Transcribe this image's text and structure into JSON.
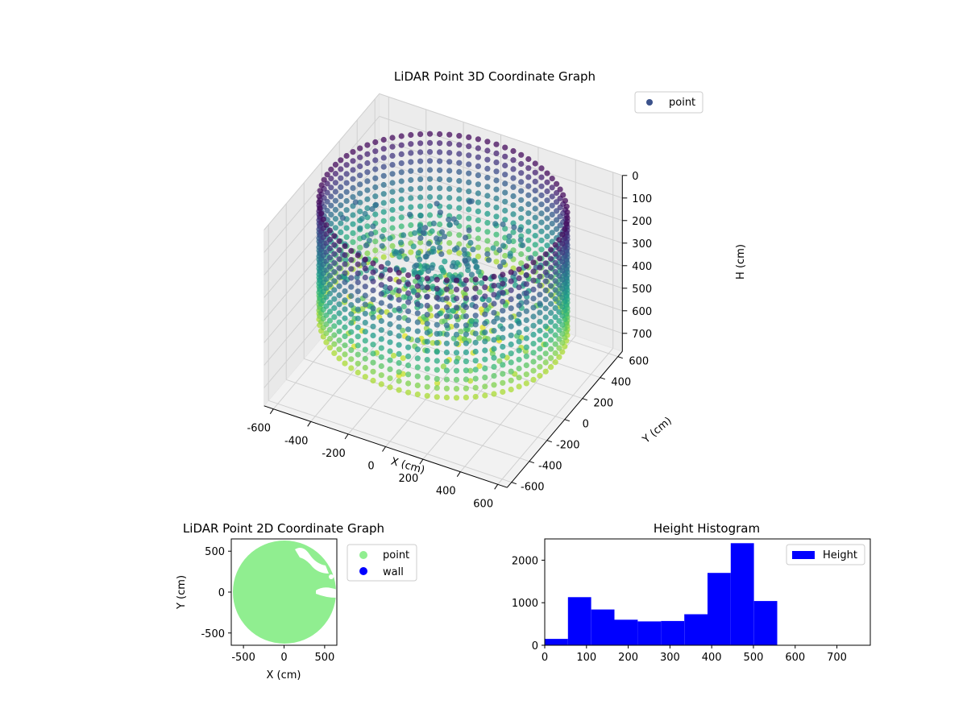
{
  "chart_data": [
    {
      "type": "scatter",
      "projection": "3d",
      "title": "LiDAR Point 3D Coordinate Graph",
      "xlabel": "X (cm)",
      "ylabel": "Y (cm)",
      "zlabel": "H (cm)",
      "xlim": [
        -650,
        650
      ],
      "ylim": [
        -650,
        650
      ],
      "zlim": [
        0,
        780
      ],
      "z_inverted": true,
      "xticks": [
        -600,
        -400,
        -200,
        0,
        200,
        400,
        600
      ],
      "yticks": [
        -600,
        -400,
        -200,
        0,
        200,
        400,
        600
      ],
      "zticks": [
        0,
        100,
        200,
        300,
        400,
        500,
        600,
        700
      ],
      "series": [
        {
          "name": "point",
          "color": "#3b528b",
          "colormap": "viridis",
          "shape": "cylindrical wall of radius ~600 with scattered interior points"
        }
      ],
      "legend": "top-right",
      "grid": true
    },
    {
      "type": "scatter",
      "title": "LiDAR Point 2D Coordinate Graph",
      "xlabel": "X (cm)",
      "ylabel": "Y (cm)",
      "xlim": [
        -650,
        650
      ],
      "ylim": [
        -650,
        650
      ],
      "xticks": [
        -500,
        0,
        500
      ],
      "yticks": [
        -500,
        0,
        500
      ],
      "series": [
        {
          "name": "point",
          "color": "#90ee90"
        },
        {
          "name": "wall",
          "color": "#0000ff"
        }
      ],
      "legend": "outside-right",
      "grid": false
    },
    {
      "type": "bar",
      "title": "Height Histogram",
      "xlim": [
        0,
        780
      ],
      "ylim": [
        0,
        2500
      ],
      "xticks": [
        0,
        100,
        200,
        300,
        400,
        500,
        600,
        700
      ],
      "yticks": [
        0,
        1000,
        2000
      ],
      "bin_edges": [
        0,
        55.7,
        111.4,
        167.1,
        222.9,
        278.6,
        334.3,
        390,
        445.7,
        501.4,
        557.1,
        612.9,
        668.6,
        724.3,
        780
      ],
      "values": [
        150,
        1130,
        840,
        600,
        560,
        570,
        730,
        1700,
        2400,
        1040,
        0,
        0,
        0,
        0
      ],
      "series": [
        {
          "name": "Height",
          "color": "#0000ff"
        }
      ],
      "legend": "top-right",
      "grid": false
    }
  ]
}
